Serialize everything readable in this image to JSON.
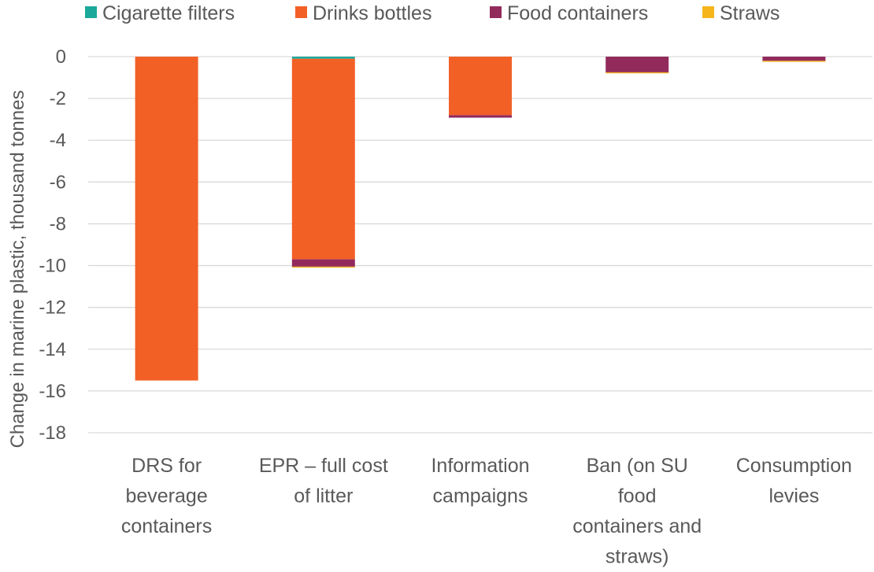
{
  "chart_data": {
    "type": "bar",
    "stacked": true,
    "title": "",
    "xlabel": "",
    "ylabel": "Change in marine plastic, thousand tonnes",
    "ylim": [
      -18,
      0
    ],
    "yticks": [
      0,
      -2,
      -4,
      -6,
      -8,
      -10,
      -12,
      -14,
      -16,
      -18
    ],
    "grid": true,
    "legend_position": "top",
    "categories": [
      [
        "DRS for",
        "beverage",
        "containers"
      ],
      [
        "EPR – full cost",
        "of litter"
      ],
      [
        "Information",
        "campaigns"
      ],
      [
        "Ban (on SU",
        "food",
        "containers and",
        "straws)"
      ],
      [
        "Consumption",
        "levies"
      ]
    ],
    "series": [
      {
        "name": "Cigarette filters",
        "color": "#1aa99b",
        "values": [
          0,
          -0.1,
          0,
          0,
          0
        ]
      },
      {
        "name": "Drinks bottles",
        "color": "#f26026",
        "values": [
          -15.5,
          -9.6,
          -2.8,
          0,
          0
        ]
      },
      {
        "name": "Food containers",
        "color": "#922b5c",
        "values": [
          0,
          -0.35,
          -0.12,
          -0.75,
          -0.2
        ]
      },
      {
        "name": "Straws",
        "color": "#f5b51b",
        "values": [
          0,
          -0.05,
          0,
          -0.05,
          -0.05
        ]
      }
    ]
  }
}
